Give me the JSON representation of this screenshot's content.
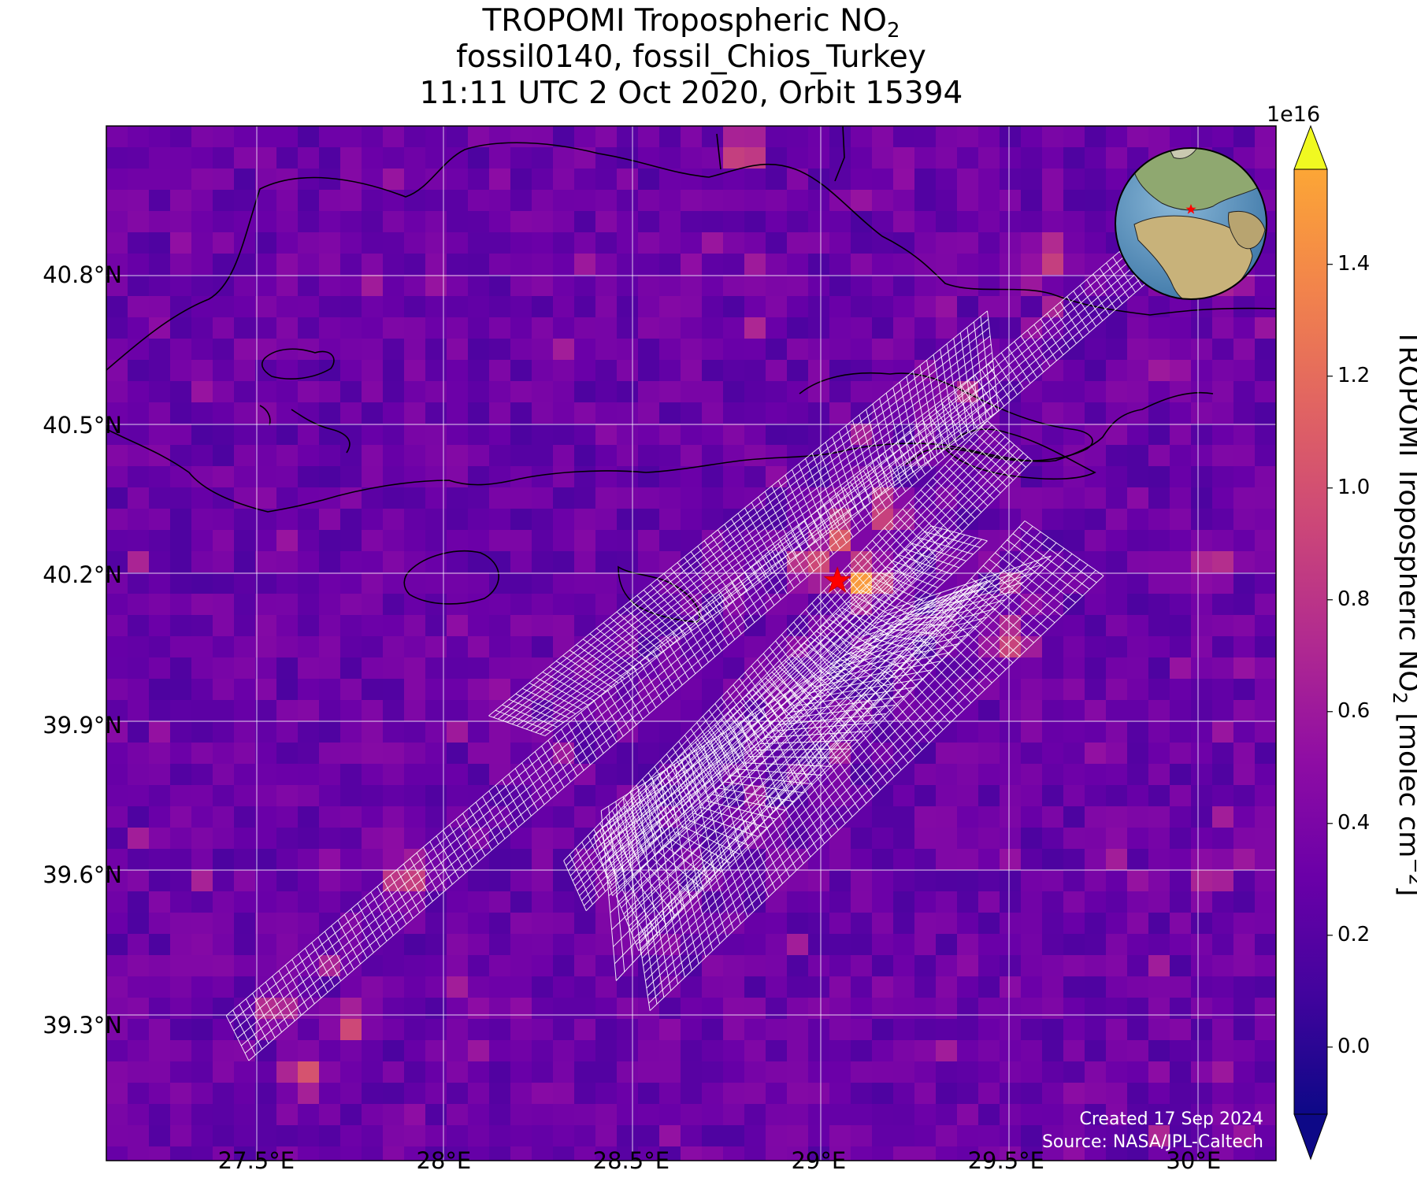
{
  "title": {
    "line1_main": "TROPOMI Tropospheric NO",
    "line1_sub": "2",
    "line2": "fossil0140, fossil_Chios_Turkey",
    "line3": "11:11 UTC 2 Oct 2020, Orbit 15394"
  },
  "map": {
    "lon_range": [
      27.1,
      30.22
    ],
    "lat_range": [
      39.03,
      41.1
    ],
    "lon_ticks": [
      {
        "value": 27.5,
        "label": "27.5°E"
      },
      {
        "value": 28.0,
        "label": "28°E"
      },
      {
        "value": 28.5,
        "label": "28.5°E"
      },
      {
        "value": 29.0,
        "label": "29°E"
      },
      {
        "value": 29.5,
        "label": "29.5°E"
      },
      {
        "value": 30.0,
        "label": "30°E"
      }
    ],
    "lat_ticks": [
      {
        "value": 40.8,
        "label": "40.8°N"
      },
      {
        "value": 40.5,
        "label": "40.5°N"
      },
      {
        "value": 40.2,
        "label": "40.2°N"
      },
      {
        "value": 39.9,
        "label": "39.9°N"
      },
      {
        "value": 39.6,
        "label": "39.6°N"
      },
      {
        "value": 39.3,
        "label": "39.3°N"
      }
    ],
    "gridlines": true,
    "background_no2_range": [
      0.15,
      0.45
    ],
    "hotspots": [
      {
        "lon": 29.12,
        "lat": 40.19,
        "value": 1.45
      },
      {
        "lon": 29.05,
        "lat": 40.28,
        "value": 1.05
      },
      {
        "lon": 29.18,
        "lat": 40.33,
        "value": 0.95
      },
      {
        "lon": 28.98,
        "lat": 40.22,
        "value": 0.95
      },
      {
        "lon": 29.5,
        "lat": 40.07,
        "value": 0.85
      },
      {
        "lon": 27.9,
        "lat": 39.6,
        "value": 0.95
      },
      {
        "lon": 27.63,
        "lat": 39.2,
        "value": 0.95
      },
      {
        "lon": 27.55,
        "lat": 39.33,
        "value": 0.8
      },
      {
        "lon": 27.75,
        "lat": 39.3,
        "value": 0.85
      },
      {
        "lon": 28.8,
        "lat": 41.05,
        "value": 1.0
      },
      {
        "lon": 29.62,
        "lat": 40.84,
        "value": 0.9
      },
      {
        "lon": 30.05,
        "lat": 40.22,
        "value": 0.8
      },
      {
        "lon": 30.05,
        "lat": 39.6,
        "value": 0.7
      }
    ],
    "source_marker": {
      "lon": 29.05,
      "lat": 40.19,
      "symbol": "star",
      "color": "#ff0000"
    },
    "target_swaths": [
      {
        "name": "swath-1",
        "corners": [
          [
            27.42,
            39.32
          ],
          [
            29.82,
            40.86
          ],
          [
            29.88,
            40.79
          ],
          [
            27.48,
            39.23
          ]
        ],
        "cols": 6
      },
      {
        "name": "swath-2",
        "corners": [
          [
            28.12,
            39.92
          ],
          [
            29.45,
            40.73
          ],
          [
            29.48,
            40.53
          ],
          [
            28.27,
            39.88
          ]
        ],
        "cols": 12
      },
      {
        "name": "swath-3",
        "corners": [
          [
            28.32,
            39.63
          ],
          [
            29.45,
            40.51
          ],
          [
            29.57,
            40.43
          ],
          [
            28.38,
            39.53
          ]
        ],
        "cols": 10
      },
      {
        "name": "swath-4",
        "corners": [
          [
            28.4,
            39.68
          ],
          [
            29.3,
            40.3
          ],
          [
            29.45,
            40.27
          ],
          [
            28.45,
            39.56
          ]
        ],
        "cols": 10
      },
      {
        "name": "swath-5",
        "corners": [
          [
            28.42,
            39.73
          ],
          [
            29.3,
            40.15
          ],
          [
            29.45,
            40.19
          ],
          [
            28.46,
            39.39
          ]
        ],
        "cols": 10
      },
      {
        "name": "swath-6",
        "corners": [
          [
            28.46,
            39.56
          ],
          [
            29.18,
            40.13
          ],
          [
            29.62,
            40.24
          ],
          [
            28.52,
            39.45
          ]
        ],
        "cols": 9
      },
      {
        "name": "swath-7",
        "corners": [
          [
            28.52,
            39.48
          ],
          [
            29.55,
            40.31
          ],
          [
            29.76,
            40.2
          ],
          [
            28.55,
            39.33
          ]
        ],
        "cols": 10
      }
    ]
  },
  "inset_globe": {
    "description": "globe-inset",
    "marker_color": "#ff0000"
  },
  "colorbar": {
    "colormap": "plasma",
    "vmin": -0.12,
    "vmax": 1.57,
    "exponent_label": "1e16",
    "extend": "both",
    "ticks": [
      {
        "value": 0.0,
        "label": "0.0"
      },
      {
        "value": 0.2,
        "label": "0.2"
      },
      {
        "value": 0.4,
        "label": "0.4"
      },
      {
        "value": 0.6,
        "label": "0.6"
      },
      {
        "value": 0.8,
        "label": "0.8"
      },
      {
        "value": 1.0,
        "label": "1.0"
      },
      {
        "value": 1.2,
        "label": "1.2"
      },
      {
        "value": 1.4,
        "label": "1.4"
      }
    ],
    "label_main": "TROPOMI Tropospheric NO",
    "label_sub": "2",
    "label_units": " [molec cm",
    "label_sup": "−2",
    "label_close": "]"
  },
  "credit": {
    "line1": "Created 17 Sep 2024",
    "line2": "Source: NASA/JPL-Caltech"
  }
}
